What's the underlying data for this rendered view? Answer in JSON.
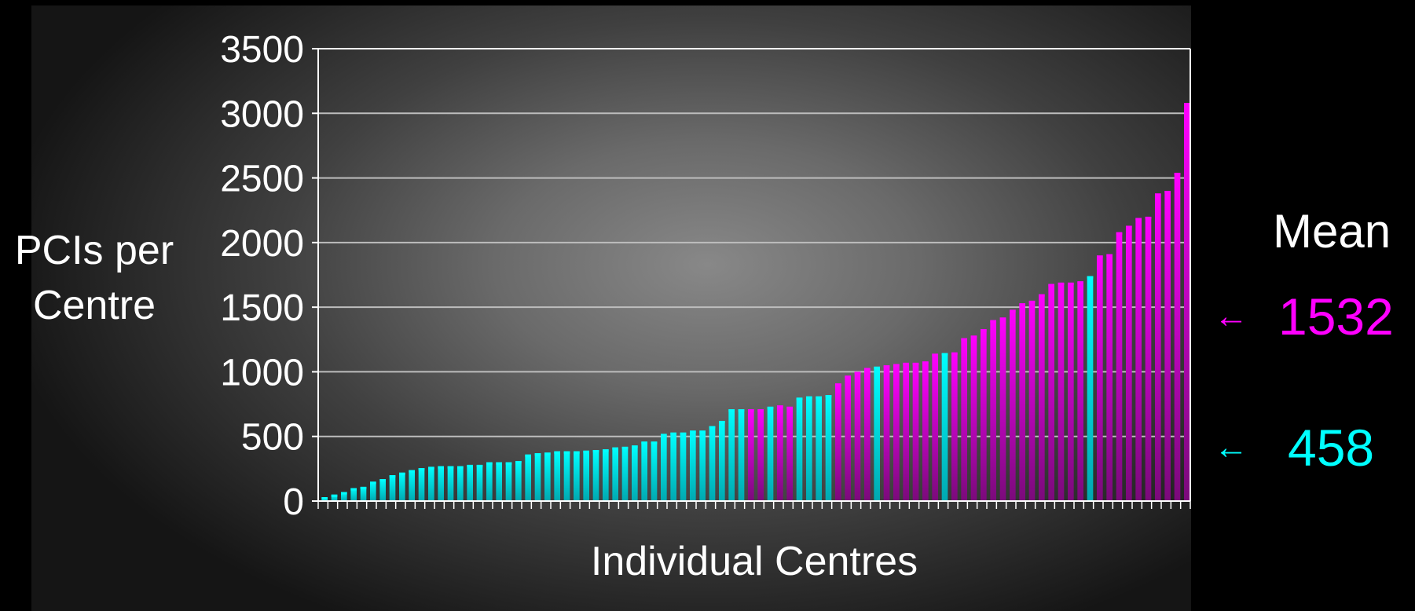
{
  "chart_data": {
    "type": "bar",
    "ylabel": "PCIs per Centre",
    "xlabel": "Individual Centres",
    "ylim": [
      0,
      3500
    ],
    "yticks": [
      0,
      500,
      1000,
      1500,
      2000,
      2500,
      3000,
      3500
    ],
    "grid": true,
    "colors": {
      "magenta": "#ff00ff",
      "cyan": "#00ffff"
    },
    "values": [
      30,
      50,
      70,
      100,
      110,
      150,
      170,
      200,
      220,
      240,
      255,
      265,
      270,
      270,
      270,
      280,
      280,
      300,
      300,
      300,
      310,
      360,
      370,
      375,
      385,
      385,
      385,
      390,
      395,
      400,
      415,
      420,
      430,
      460,
      460,
      520,
      530,
      530,
      545,
      545,
      580,
      620,
      710,
      710,
      710,
      710,
      730,
      740,
      730,
      800,
      810,
      810,
      820,
      910,
      970,
      1000,
      1030,
      1040,
      1050,
      1060,
      1070,
      1070,
      1080,
      1140,
      1145,
      1150,
      1260,
      1280,
      1330,
      1400,
      1420,
      1480,
      1530,
      1550,
      1600,
      1680,
      1690,
      1690,
      1700,
      1740,
      1900,
      1910,
      2080,
      2130,
      2190,
      2200,
      2380,
      2400,
      2540,
      3080
    ],
    "series_colors": [
      "c",
      "c",
      "c",
      "c",
      "c",
      "c",
      "c",
      "c",
      "c",
      "c",
      "c",
      "c",
      "c",
      "c",
      "c",
      "c",
      "c",
      "c",
      "c",
      "c",
      "c",
      "c",
      "c",
      "c",
      "c",
      "c",
      "c",
      "c",
      "c",
      "c",
      "c",
      "c",
      "c",
      "c",
      "c",
      "c",
      "c",
      "c",
      "c",
      "c",
      "c",
      "c",
      "c",
      "c",
      "m",
      "m",
      "c",
      "m",
      "m",
      "c",
      "c",
      "c",
      "c",
      "m",
      "m",
      "m",
      "m",
      "c",
      "m",
      "m",
      "m",
      "m",
      "m",
      "m",
      "c",
      "m",
      "m",
      "m",
      "m",
      "m",
      "m",
      "m",
      "m",
      "m",
      "m",
      "m",
      "m",
      "m",
      "m",
      "c",
      "m",
      "m",
      "m",
      "m",
      "m",
      "m",
      "m",
      "m",
      "m",
      "m"
    ]
  },
  "mean": {
    "title": "Mean",
    "magenta_value": "1532",
    "cyan_value": "458",
    "arrow": "←"
  }
}
